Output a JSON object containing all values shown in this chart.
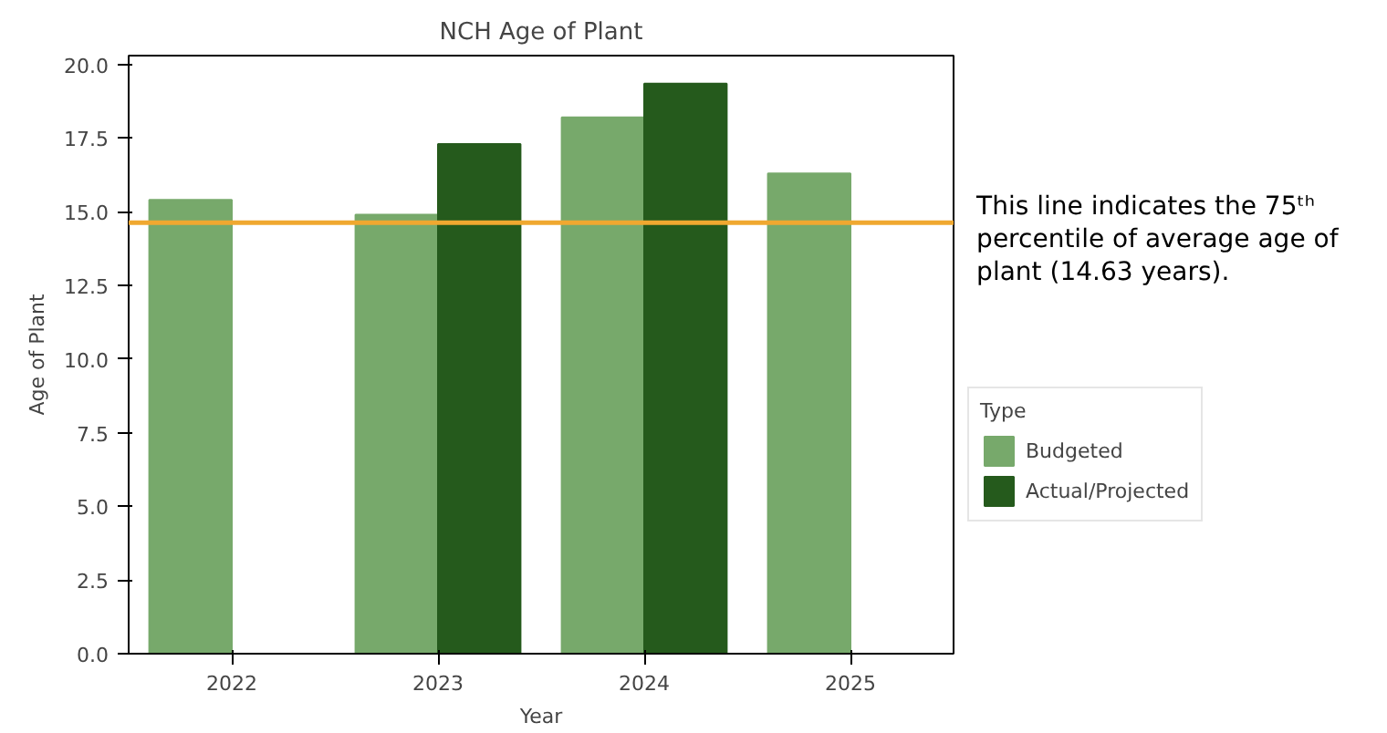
{
  "chart_data": {
    "type": "bar",
    "title": "NCH Age of Plant",
    "xlabel": "Year",
    "ylabel": "Age of Plant",
    "legend_title": "Type",
    "categories": [
      "2022",
      "2023",
      "2024",
      "2025"
    ],
    "series": [
      {
        "name": "Budgeted",
        "color": "#77a96b",
        "values": [
          15.4,
          14.9,
          18.2,
          16.3
        ]
      },
      {
        "name": "Actual/Projected",
        "color": "#255a1c",
        "values": [
          null,
          17.3,
          19.35,
          null
        ]
      }
    ],
    "ylim": [
      0,
      20.3
    ],
    "yticks": [
      {
        "value": 0,
        "label": "0.0"
      },
      {
        "value": 2.5,
        "label": "2.5"
      },
      {
        "value": 5,
        "label": "5.0"
      },
      {
        "value": 7.5,
        "label": "7.5"
      },
      {
        "value": 10,
        "label": "10.0"
      },
      {
        "value": 12.5,
        "label": "12.5"
      },
      {
        "value": 15,
        "label": "15.0"
      },
      {
        "value": 17.5,
        "label": "17.5"
      },
      {
        "value": 20,
        "label": "20.0"
      }
    ],
    "ref_lines": [
      {
        "axis": "y",
        "value": 14.63,
        "label": "This line indicates the 75ᵗʰ percentile of average age of plant (14.63 years).",
        "color": "#f0a830",
        "line_style": "solid"
      }
    ],
    "grid": false,
    "legend": "right"
  }
}
